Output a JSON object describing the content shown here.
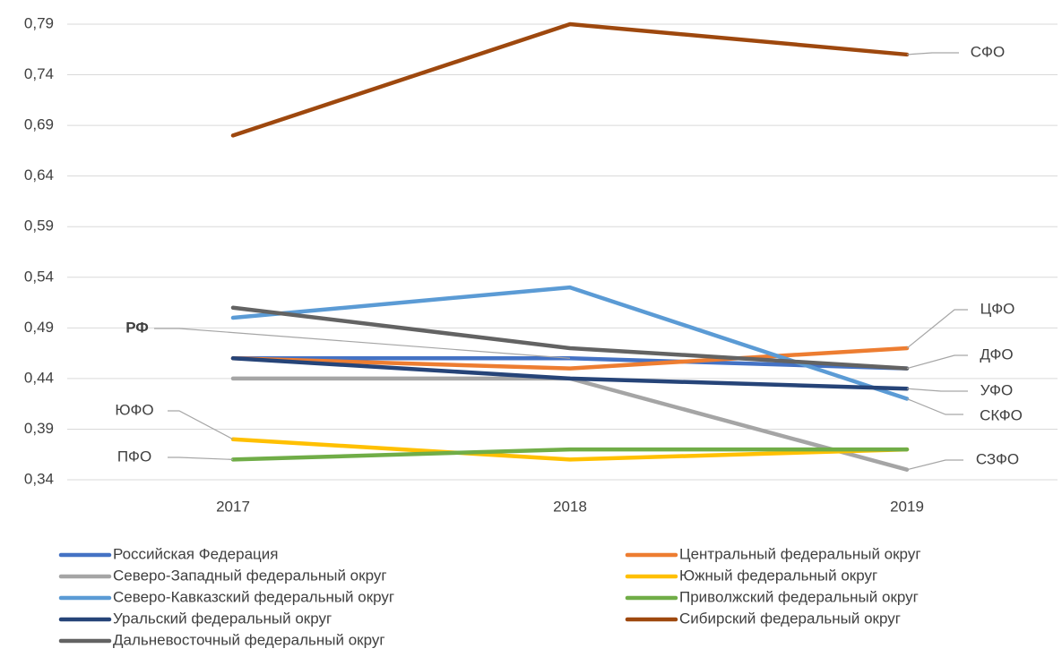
{
  "chart_data": {
    "type": "line",
    "categories": [
      "2017",
      "2018",
      "2019"
    ],
    "series": [
      {
        "name": "Российская Федерация",
        "color": "#4472c4",
        "values": [
          0.46,
          0.46,
          0.45
        ]
      },
      {
        "name": "Центральный федеральный округ",
        "color": "#ed7d31",
        "values": [
          0.46,
          0.45,
          0.47
        ]
      },
      {
        "name": "Северо-Западный федеральный округ",
        "color": "#a5a5a5",
        "values": [
          0.44,
          0.44,
          0.35
        ]
      },
      {
        "name": "Южный федеральный округ",
        "color": "#ffc000",
        "values": [
          0.38,
          0.36,
          0.37
        ]
      },
      {
        "name": "Северо-Кавказский федеральный округ",
        "color": "#5b9bd5",
        "values": [
          0.5,
          0.53,
          0.42
        ]
      },
      {
        "name": "Приволжский федеральный округ",
        "color": "#70ad47",
        "values": [
          0.36,
          0.37,
          0.37
        ]
      },
      {
        "name": "Уральский федеральный округ",
        "color": "#264478",
        "values": [
          0.46,
          0.44,
          0.43
        ]
      },
      {
        "name": "Сибирский федеральный округ",
        "color": "#9e480e",
        "values": [
          0.68,
          0.79,
          0.76
        ]
      },
      {
        "name": "Дальневосточный федеральный округ",
        "color": "#636363",
        "values": [
          0.51,
          0.47,
          0.45
        ]
      }
    ],
    "ylim": [
      0.34,
      0.79
    ],
    "yticks": [
      {
        "value": 0.34,
        "label": "0,34"
      },
      {
        "value": 0.39,
        "label": "0,39"
      },
      {
        "value": 0.44,
        "label": "0,44"
      },
      {
        "value": 0.49,
        "label": "0,49"
      },
      {
        "value": 0.54,
        "label": "0,54"
      },
      {
        "value": 0.59,
        "label": "0,59"
      },
      {
        "value": 0.64,
        "label": "0,64"
      },
      {
        "value": 0.69,
        "label": "0,69"
      },
      {
        "value": 0.74,
        "label": "0,74"
      },
      {
        "value": 0.79,
        "label": "0,79"
      }
    ],
    "grid": true,
    "legend": "bottom",
    "annotations": [
      "РФ",
      "ЮФО",
      "ПФО",
      "СФО",
      "ЦФО",
      "ДФО",
      "УФО",
      "СКФО",
      "СЗФО"
    ]
  }
}
